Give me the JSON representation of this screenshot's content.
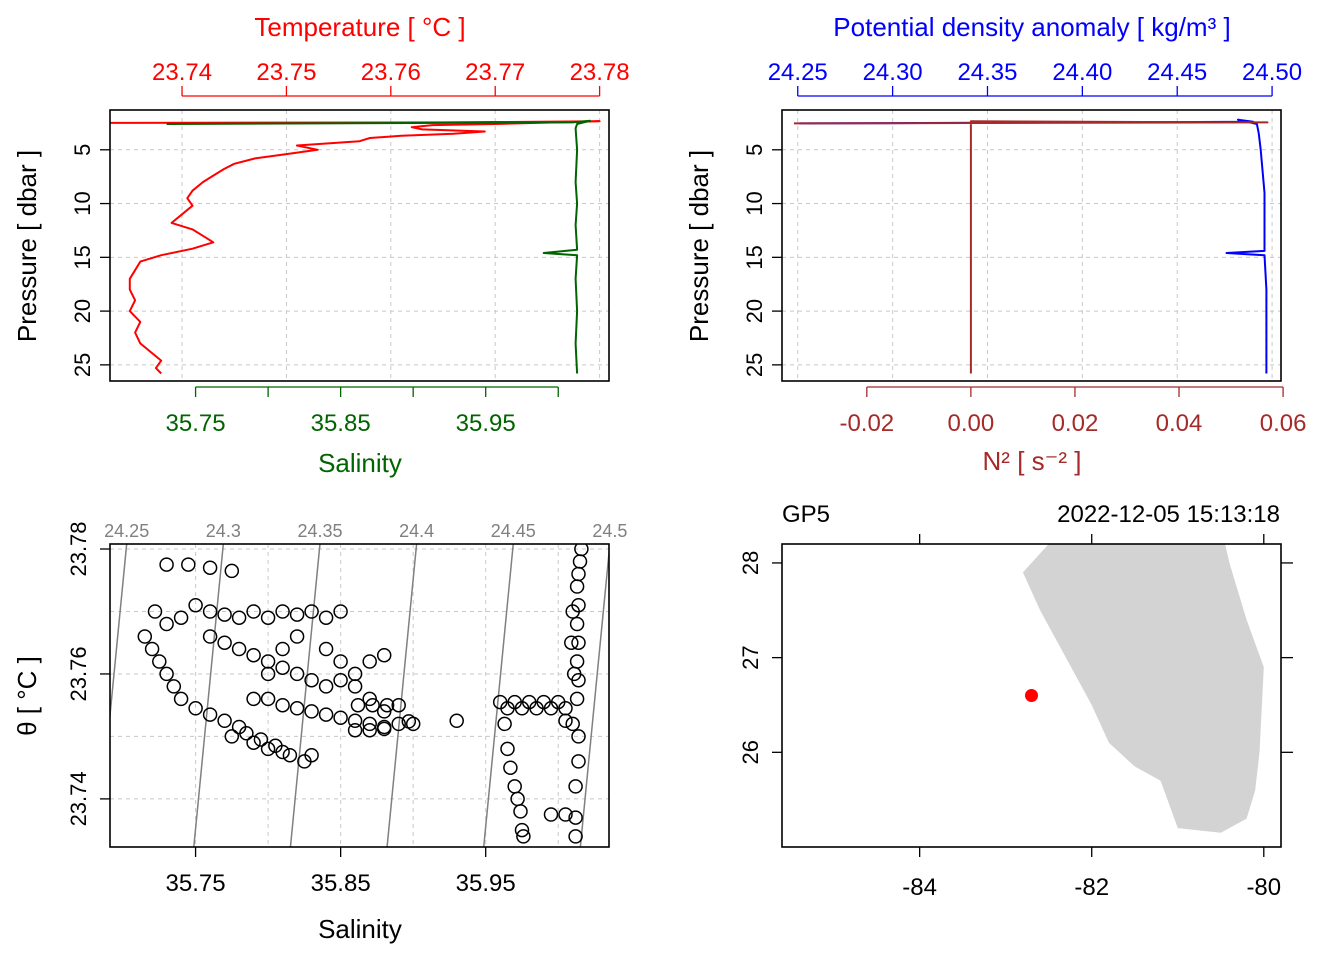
{
  "colors": {
    "temperature": "#ff0000",
    "salinity": "#006400",
    "density": "#0000ff",
    "n2": "#a52a2a",
    "isopycnal": "#808080",
    "coast": "#d3d3d3",
    "station": "#ff0000",
    "grid": "#c8c8c8"
  },
  "chart_data": [
    {
      "type": "line",
      "panel": "profile-temperature-salinity",
      "title": "",
      "ylabel": "Pressure [ dbar ]",
      "ylim": [
        26.5,
        1.3
      ],
      "yreversed": true,
      "yticks": [
        "5",
        "10",
        "15",
        "20",
        "25"
      ],
      "grid": true,
      "top_axis": {
        "label": "Temperature [ °C ]",
        "range": [
          23.7331,
          23.7809
        ],
        "ticks": [
          "23.74",
          "23.75",
          "23.76",
          "23.77",
          "23.78"
        ]
      },
      "bottom_axis": {
        "label": "Salinity",
        "range": [
          35.691,
          36.035
        ],
        "ticks": [
          "35.75",
          "35.85",
          "35.95"
        ],
        "minor_ticks": [
          35.8,
          35.9,
          36.0
        ]
      },
      "series": [
        {
          "name": "Temperature",
          "axis": "top",
          "color": "#ff0000",
          "points": [
            [
              23.7331,
              2.5
            ],
            [
              23.765,
              2.45
            ],
            [
              23.78,
              2.35
            ],
            [
              23.77,
              2.6
            ],
            [
              23.764,
              2.7
            ],
            [
              23.762,
              2.9
            ],
            [
              23.763,
              3.1
            ],
            [
              23.769,
              3.3
            ],
            [
              23.766,
              3.5
            ],
            [
              23.761,
              3.7
            ],
            [
              23.758,
              3.9
            ],
            [
              23.757,
              4.2
            ],
            [
              23.751,
              4.6
            ],
            [
              23.753,
              5.0
            ],
            [
              23.75,
              5.4
            ],
            [
              23.747,
              5.8
            ],
            [
              23.745,
              6.3
            ],
            [
              23.744,
              6.8
            ],
            [
              23.743,
              7.4
            ],
            [
              23.742,
              8.0
            ],
            [
              23.741,
              8.8
            ],
            [
              23.7405,
              9.5
            ],
            [
              23.741,
              10.2
            ],
            [
              23.74,
              11.0
            ],
            [
              23.739,
              11.8
            ],
            [
              23.741,
              12.4
            ],
            [
              23.742,
              13.0
            ],
            [
              23.743,
              13.6
            ],
            [
              23.741,
              14.2
            ],
            [
              23.738,
              14.8
            ],
            [
              23.736,
              15.4
            ],
            [
              23.7355,
              16.2
            ],
            [
              23.735,
              17.0
            ],
            [
              23.735,
              18.0
            ],
            [
              23.7355,
              19.0
            ],
            [
              23.735,
              20.0
            ],
            [
              23.736,
              21.0
            ],
            [
              23.7355,
              22.0
            ],
            [
              23.736,
              23.0
            ],
            [
              23.737,
              23.8
            ],
            [
              23.738,
              24.6
            ],
            [
              23.7375,
              25.3
            ],
            [
              23.738,
              25.8
            ]
          ]
        },
        {
          "name": "Salinity",
          "axis": "bottom",
          "color": "#006400",
          "points": [
            [
              35.73,
              2.6
            ],
            [
              36.01,
              2.45
            ],
            [
              36.022,
              2.3
            ],
            [
              36.013,
              2.6
            ],
            [
              36.012,
              3.0
            ],
            [
              36.013,
              5.0
            ],
            [
              36.012,
              8.0
            ],
            [
              36.013,
              10.0
            ],
            [
              36.012,
              12.0
            ],
            [
              36.013,
              14.3
            ],
            [
              35.99,
              14.6
            ],
            [
              36.013,
              14.8
            ],
            [
              36.012,
              17.0
            ],
            [
              36.013,
              20.0
            ],
            [
              36.012,
              23.0
            ],
            [
              36.013,
              25.8
            ]
          ]
        }
      ]
    },
    {
      "type": "line",
      "panel": "profile-density-n2",
      "title": "",
      "ylabel": "Pressure [ dbar ]",
      "ylim": [
        26.5,
        1.3
      ],
      "yreversed": true,
      "yticks": [
        "5",
        "10",
        "15",
        "20",
        "25"
      ],
      "grid": true,
      "top_axis": {
        "label": "Potential density anomaly [ kg/m³ ]",
        "range": [
          24.2417,
          24.5047
        ],
        "ticks": [
          "24.25",
          "24.30",
          "24.35",
          "24.40",
          "24.45",
          "24.50"
        ]
      },
      "bottom_axis": {
        "label": "N² [ s⁻² ]",
        "range": [
          -0.0363,
          0.0596
        ],
        "ticks": [
          "-0.02",
          "0.00",
          "0.02",
          "0.04",
          "0.06"
        ]
      },
      "series": [
        {
          "name": "Potential density anomaly",
          "axis": "top",
          "color": "#0000ff",
          "points": [
            [
              24.251,
              2.55
            ],
            [
              24.49,
              2.4
            ],
            [
              24.482,
              2.2
            ],
            [
              24.492,
              2.6
            ],
            [
              24.493,
              3.5
            ],
            [
              24.494,
              5.0
            ],
            [
              24.495,
              7.0
            ],
            [
              24.496,
              9.0
            ],
            [
              24.496,
              12.0
            ],
            [
              24.496,
              14.4
            ],
            [
              24.476,
              14.6
            ],
            [
              24.496,
              14.8
            ],
            [
              24.497,
              18.0
            ],
            [
              24.497,
              21.0
            ],
            [
              24.497,
              24.0
            ],
            [
              24.497,
              25.8
            ]
          ]
        },
        {
          "name": "N²",
          "axis": "bottom",
          "color": "#a52a2a",
          "points": [
            [
              -0.034,
              2.55
            ],
            [
              0.057,
              2.45
            ],
            [
              0.0,
              2.35
            ],
            [
              0.0,
              3.0
            ],
            [
              0.0,
              10.0
            ],
            [
              0.0,
              20.0
            ],
            [
              0.0,
              25.8
            ]
          ]
        }
      ]
    },
    {
      "type": "scatter",
      "panel": "ts-diagram",
      "title": "",
      "xlabel": "Salinity",
      "ylabel": "θ [ °C ]",
      "xlim": [
        35.691,
        36.035
      ],
      "ylim": [
        23.7323,
        23.7808
      ],
      "xticks": [
        "35.75",
        "35.85",
        "35.95"
      ],
      "yticks": [
        "23.74",
        "23.76",
        "23.78"
      ],
      "grid": true,
      "isopycnals": [
        "24.25",
        "24.3",
        "24.35",
        "24.4",
        "24.45",
        "24.5"
      ],
      "isopycnal_values": [
        24.25,
        24.3,
        24.35,
        24.4,
        24.45,
        24.5
      ],
      "points": [
        [
          35.73,
          23.7775
        ],
        [
          35.745,
          23.7775
        ],
        [
          35.76,
          23.777
        ],
        [
          35.775,
          23.7765
        ],
        [
          35.722,
          23.77
        ],
        [
          35.73,
          23.768
        ],
        [
          35.74,
          23.769
        ],
        [
          35.75,
          23.771
        ],
        [
          35.76,
          23.77
        ],
        [
          35.77,
          23.7695
        ],
        [
          35.78,
          23.769
        ],
        [
          35.79,
          23.77
        ],
        [
          35.8,
          23.769
        ],
        [
          35.81,
          23.77
        ],
        [
          35.82,
          23.7695
        ],
        [
          35.83,
          23.77
        ],
        [
          35.84,
          23.769
        ],
        [
          35.85,
          23.77
        ],
        [
          35.715,
          23.766
        ],
        [
          35.72,
          23.764
        ],
        [
          35.725,
          23.762
        ],
        [
          35.73,
          23.76
        ],
        [
          35.735,
          23.758
        ],
        [
          35.74,
          23.756
        ],
        [
          35.75,
          23.7545
        ],
        [
          35.76,
          23.7535
        ],
        [
          35.77,
          23.7525
        ],
        [
          35.78,
          23.7515
        ],
        [
          35.785,
          23.7505
        ],
        [
          35.795,
          23.7495
        ],
        [
          35.805,
          23.7485
        ],
        [
          35.815,
          23.747
        ],
        [
          35.825,
          23.746
        ],
        [
          35.83,
          23.747
        ],
        [
          35.76,
          23.766
        ],
        [
          35.77,
          23.765
        ],
        [
          35.78,
          23.764
        ],
        [
          35.79,
          23.763
        ],
        [
          35.8,
          23.762
        ],
        [
          35.81,
          23.761
        ],
        [
          35.82,
          23.76
        ],
        [
          35.83,
          23.759
        ],
        [
          35.84,
          23.758
        ],
        [
          35.85,
          23.759
        ],
        [
          35.86,
          23.76
        ],
        [
          35.87,
          23.762
        ],
        [
          35.88,
          23.763
        ],
        [
          35.8,
          23.756
        ],
        [
          35.81,
          23.755
        ],
        [
          35.82,
          23.7545
        ],
        [
          35.83,
          23.754
        ],
        [
          35.84,
          23.7535
        ],
        [
          35.85,
          23.753
        ],
        [
          35.86,
          23.7525
        ],
        [
          35.87,
          23.752
        ],
        [
          35.88,
          23.7515
        ],
        [
          35.89,
          23.752
        ],
        [
          35.9,
          23.752
        ],
        [
          35.862,
          23.755
        ],
        [
          35.872,
          23.755
        ],
        [
          35.882,
          23.755
        ],
        [
          35.89,
          23.755
        ],
        [
          35.86,
          23.751
        ],
        [
          35.87,
          23.751
        ],
        [
          35.88,
          23.7512
        ],
        [
          35.897,
          23.7524
        ],
        [
          35.93,
          23.7525
        ],
        [
          35.775,
          23.75
        ],
        [
          35.79,
          23.749
        ],
        [
          35.8,
          23.748
        ],
        [
          35.81,
          23.7475
        ],
        [
          35.79,
          23.756
        ],
        [
          35.8,
          23.76
        ],
        [
          35.81,
          23.764
        ],
        [
          35.82,
          23.766
        ],
        [
          35.84,
          23.764
        ],
        [
          35.85,
          23.762
        ],
        [
          35.86,
          23.758
        ],
        [
          35.87,
          23.756
        ],
        [
          35.88,
          23.754
        ],
        [
          35.96,
          23.7555
        ],
        [
          35.97,
          23.7555
        ],
        [
          35.98,
          23.7555
        ],
        [
          35.99,
          23.7555
        ],
        [
          36.0,
          23.7555
        ],
        [
          35.965,
          23.7545
        ],
        [
          35.975,
          23.7545
        ],
        [
          35.985,
          23.7545
        ],
        [
          35.995,
          23.7545
        ],
        [
          36.005,
          23.7545
        ],
        [
          35.963,
          23.752
        ],
        [
          35.965,
          23.748
        ],
        [
          35.967,
          23.745
        ],
        [
          35.97,
          23.742
        ],
        [
          35.972,
          23.74
        ],
        [
          35.974,
          23.738
        ],
        [
          35.975,
          23.735
        ],
        [
          35.976,
          23.734
        ],
        [
          35.995,
          23.7375
        ],
        [
          36.005,
          23.7375
        ],
        [
          36.005,
          23.7525
        ],
        [
          36.01,
          23.752
        ],
        [
          36.012,
          23.742
        ],
        [
          36.012,
          23.737
        ],
        [
          36.012,
          23.734
        ],
        [
          36.014,
          23.746
        ],
        [
          36.014,
          23.75
        ],
        [
          36.013,
          23.756
        ],
        [
          36.014,
          23.759
        ],
        [
          36.013,
          23.762
        ],
        [
          36.014,
          23.765
        ],
        [
          36.013,
          23.768
        ],
        [
          36.014,
          23.771
        ],
        [
          36.013,
          23.774
        ],
        [
          36.014,
          23.776
        ],
        [
          36.015,
          23.778
        ],
        [
          36.016,
          23.78
        ],
        [
          36.01,
          23.77
        ],
        [
          36.009,
          23.765
        ],
        [
          36.011,
          23.76
        ]
      ]
    },
    {
      "type": "map",
      "panel": "location-map",
      "title_left": "GP5",
      "title_right": "2022-12-05 15:13:18",
      "xlim": [
        -85.6,
        -79.8
      ],
      "ylim": [
        25.0,
        28.2
      ],
      "xticks": [
        "-84",
        "-82",
        "-80"
      ],
      "yticks": [
        "26",
        "27",
        "28"
      ],
      "station": {
        "lon": -82.7,
        "lat": 26.6
      },
      "coastline": [
        [
          -82.5,
          28.2
        ],
        [
          -82.8,
          27.9
        ],
        [
          -82.6,
          27.5
        ],
        [
          -82.3,
          27.0
        ],
        [
          -82.0,
          26.5
        ],
        [
          -81.8,
          26.1
        ],
        [
          -81.5,
          25.85
        ],
        [
          -81.2,
          25.7
        ],
        [
          -81.0,
          25.2
        ],
        [
          -80.5,
          25.15
        ],
        [
          -80.2,
          25.3
        ],
        [
          -80.1,
          25.6
        ],
        [
          -80.05,
          26.0
        ],
        [
          -80.0,
          26.9
        ],
        [
          -80.2,
          27.4
        ],
        [
          -80.4,
          28.0
        ],
        [
          -80.45,
          28.2
        ]
      ]
    }
  ]
}
